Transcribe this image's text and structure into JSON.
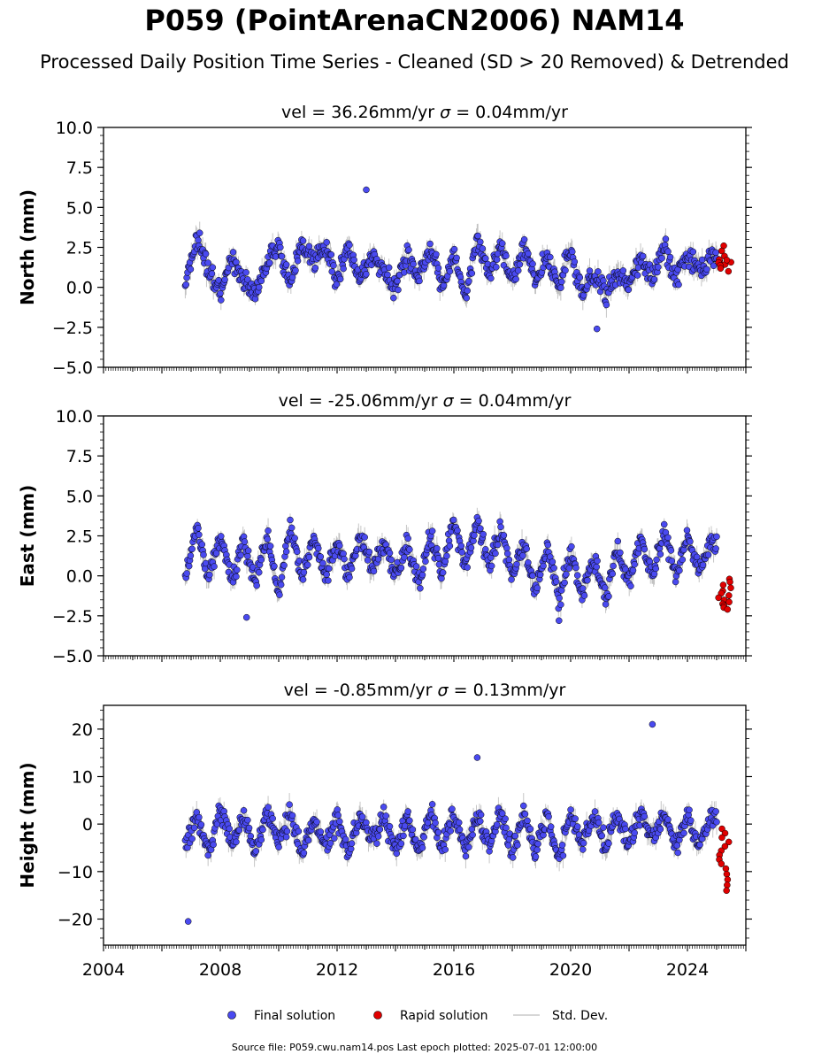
{
  "figure": {
    "title": "P059 (PointArenaCN2006) NAM14",
    "subtitle": "Processed Daily Position Time Series - Cleaned (SD > 20 Removed) & Detrended",
    "source": "Source file: P059.cwu.nam14.pos  Last epoch plotted: 2025-07-01 12:00:00"
  },
  "legend": {
    "position": "bottom-center",
    "final_label": "Final solution",
    "rapid_label": "Rapid solution",
    "std_label": "Std. Dev."
  },
  "colors": {
    "final": "#4a4af0",
    "rapid": "#e00000",
    "std": "#808080",
    "edge": "#000000"
  },
  "chart_data": [
    {
      "type": "scatter",
      "subtitle_vel": "vel = 36.26mm/yr",
      "subtitle_sigma": "= 0.04mm/yr",
      "ylabel": "North (mm)",
      "xlim": [
        2004.0,
        2026.0
      ],
      "ylim": [
        -5,
        10
      ],
      "yticks": [
        -5,
        -2.5,
        0,
        2.5,
        5,
        7.5,
        10
      ],
      "ytick_labels": [
        "−5.0",
        "−2.5",
        "0.0",
        "2.5",
        "5.0",
        "7.5",
        "10.0"
      ],
      "xtick_labels": [],
      "grid": false,
      "time_span": [
        2006.8,
        2025.0
      ],
      "rapid_span": [
        2025.05,
        2025.5
      ],
      "series": [
        {
          "name": "Final solution",
          "x": [
            2006.8,
            2007.2,
            2007.6,
            2008.0,
            2008.4,
            2008.8,
            2009.2,
            2009.6,
            2010.0,
            2010.4,
            2010.8,
            2011.2,
            2011.6,
            2012.0,
            2012.4,
            2012.8,
            2013.2,
            2013.6,
            2014.0,
            2014.4,
            2014.8,
            2015.2,
            2015.6,
            2016.0,
            2016.4,
            2016.8,
            2017.2,
            2017.6,
            2018.0,
            2018.4,
            2018.8,
            2019.2,
            2019.6,
            2020.0,
            2020.4,
            2020.8,
            2021.2,
            2021.6,
            2022.0,
            2022.4,
            2022.8,
            2023.2,
            2023.6,
            2024.0,
            2024.4,
            2024.8
          ],
          "y": [
            0.5,
            3.0,
            1.0,
            -0.5,
            2.0,
            0.5,
            -0.5,
            1.5,
            2.5,
            0.0,
            3.0,
            1.5,
            2.5,
            0.5,
            2.5,
            0.5,
            2.0,
            1.0,
            0.0,
            2.0,
            0.5,
            2.5,
            0.0,
            2.0,
            -0.5,
            3.0,
            1.0,
            2.5,
            0.5,
            2.5,
            0.5,
            2.0,
            0.0,
            2.5,
            -0.5,
            1.0,
            -0.5,
            1.0,
            0.0,
            2.0,
            0.5,
            2.5,
            0.5,
            2.0,
            1.0,
            2.0
          ]
        },
        {
          "name": "Rapid solution",
          "x": [
            2025.1,
            2025.2,
            2025.3,
            2025.4
          ],
          "y": [
            2.6,
            1.2,
            1.8,
            1.0
          ]
        }
      ],
      "notable_points": [
        {
          "x": 2013.0,
          "y": 6.1
        },
        {
          "x": 2020.9,
          "y": -2.6
        }
      ]
    },
    {
      "type": "scatter",
      "subtitle_vel": "vel = -25.06mm/yr",
      "subtitle_sigma": "= 0.04mm/yr",
      "ylabel": "East (mm)",
      "xlim": [
        2004.0,
        2026.0
      ],
      "ylim": [
        -5,
        10
      ],
      "yticks": [
        -5,
        -2.5,
        0,
        2.5,
        5,
        7.5,
        10
      ],
      "ytick_labels": [
        "−5.0",
        "−2.5",
        "0.0",
        "2.5",
        "5.0",
        "7.5",
        "10.0"
      ],
      "xtick_labels": [],
      "grid": false,
      "time_span": [
        2006.8,
        2025.0
      ],
      "rapid_span": [
        2025.05,
        2025.5
      ],
      "series": [
        {
          "name": "Final solution",
          "x": [
            2006.8,
            2007.2,
            2007.6,
            2008.0,
            2008.4,
            2008.8,
            2009.2,
            2009.6,
            2010.0,
            2010.4,
            2010.8,
            2011.2,
            2011.6,
            2012.0,
            2012.4,
            2012.8,
            2013.2,
            2013.6,
            2014.0,
            2014.4,
            2014.8,
            2015.2,
            2015.6,
            2016.0,
            2016.4,
            2016.8,
            2017.2,
            2017.6,
            2018.0,
            2018.4,
            2018.8,
            2019.2,
            2019.6,
            2020.0,
            2020.4,
            2020.8,
            2021.2,
            2021.6,
            2022.0,
            2022.4,
            2022.8,
            2023.2,
            2023.6,
            2024.0,
            2024.4,
            2024.8
          ],
          "y": [
            0.0,
            3.0,
            0.0,
            2.5,
            -0.5,
            2.0,
            -0.5,
            2.5,
            -1.0,
            3.0,
            0.0,
            2.5,
            0.0,
            2.0,
            0.0,
            2.5,
            0.5,
            2.0,
            0.0,
            2.0,
            -0.5,
            2.5,
            0.0,
            3.5,
            0.5,
            3.5,
            0.5,
            3.0,
            0.0,
            2.0,
            -1.0,
            2.0,
            -1.5,
            1.5,
            -1.0,
            1.0,
            -1.5,
            1.5,
            -0.5,
            2.5,
            0.0,
            3.0,
            0.0,
            2.5,
            0.5,
            2.0
          ]
        },
        {
          "name": "Rapid solution",
          "x": [
            2025.1,
            2025.2,
            2025.3,
            2025.4
          ],
          "y": [
            -0.2,
            -1.0,
            -1.6,
            -2.1
          ]
        }
      ],
      "notable_points": [
        {
          "x": 2008.9,
          "y": -2.6
        },
        {
          "x": 2019.6,
          "y": -2.8
        }
      ]
    },
    {
      "type": "scatter",
      "subtitle_vel": "vel = -0.85mm/yr",
      "subtitle_sigma": "= 0.13mm/yr",
      "ylabel": "Height (mm)",
      "xlim": [
        2004.0,
        2026.0
      ],
      "ylim": [
        -25.5,
        25
      ],
      "yticks": [
        -20,
        -10,
        0,
        10,
        20
      ],
      "ytick_labels": [
        "−20",
        "−10",
        "0",
        "10",
        "20"
      ],
      "xtick_labels": [
        "2004",
        "2008",
        "2012",
        "2016",
        "2020",
        "2024"
      ],
      "grid": false,
      "time_span": [
        2006.8,
        2025.0
      ],
      "rapid_span": [
        2025.05,
        2025.5
      ],
      "series": [
        {
          "name": "Final solution",
          "x": [
            2006.8,
            2007.2,
            2007.6,
            2008.0,
            2008.4,
            2008.8,
            2009.2,
            2009.6,
            2010.0,
            2010.4,
            2010.8,
            2011.2,
            2011.6,
            2012.0,
            2012.4,
            2012.8,
            2013.2,
            2013.6,
            2014.0,
            2014.4,
            2014.8,
            2015.2,
            2015.6,
            2016.0,
            2016.4,
            2016.8,
            2017.2,
            2017.6,
            2018.0,
            2018.4,
            2018.8,
            2019.2,
            2019.6,
            2020.0,
            2020.4,
            2020.8,
            2021.2,
            2021.6,
            2022.0,
            2022.4,
            2022.8,
            2023.2,
            2023.6,
            2024.0,
            2024.4,
            2024.8
          ],
          "y": [
            -5,
            2,
            -6,
            3,
            -5,
            2,
            -6,
            3,
            -4,
            2,
            -6,
            1,
            -5,
            1,
            -6,
            2,
            -4,
            2,
            -5,
            1,
            -6,
            3,
            -5,
            2,
            -6,
            2,
            -5,
            3,
            -6,
            2,
            -6,
            2,
            -8,
            3,
            -5,
            2,
            -5,
            2,
            -4,
            3,
            -3,
            2,
            -5,
            2,
            -5,
            1
          ]
        },
        {
          "name": "Rapid solution",
          "x": [
            2025.1,
            2025.2,
            2025.3,
            2025.4
          ],
          "y": [
            -1,
            -5,
            -9,
            -14
          ]
        }
      ],
      "notable_points": [
        {
          "x": 2006.9,
          "y": -20.5
        },
        {
          "x": 2022.8,
          "y": 21.0
        },
        {
          "x": 2016.8,
          "y": 14.0
        }
      ]
    }
  ]
}
